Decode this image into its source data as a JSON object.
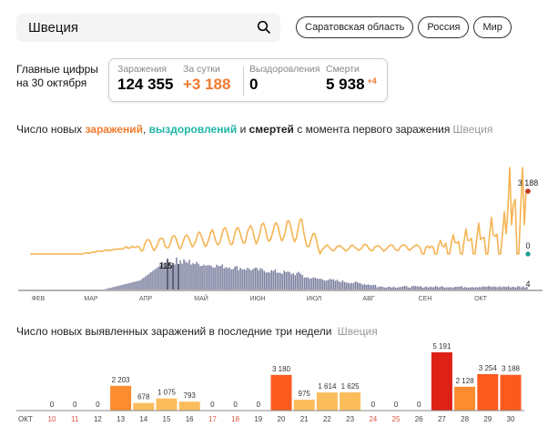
{
  "search": {
    "value": "Швеция",
    "icon": "search-icon"
  },
  "region_pills": [
    "Саратовская область",
    "Россия",
    "Мир"
  ],
  "main_figures": {
    "label_line1": "Главные цифры",
    "label_line2": "на 30 октября",
    "infections": {
      "label": "Заражения",
      "value": "124 355"
    },
    "per_day": {
      "label": "За сутки",
      "value": "+3 188"
    },
    "recoveries": {
      "label": "Выздоровления",
      "value": "0"
    },
    "deaths": {
      "label": "Смерти",
      "value": "5 938",
      "delta": "+4"
    }
  },
  "chart1_title": {
    "part1": "Число новых ",
    "infections": "заражений",
    "sep1": ", ",
    "recoveries": "выздоровлений",
    "sep2": " и ",
    "deaths": "смертей",
    "part2": " с момента первого заражения",
    "region": "Швеция"
  },
  "chart2_title": {
    "text": "Число новых выявленных заражений в последние три недели",
    "region": "Швеция"
  },
  "colors": {
    "infections_line": "#f5b454",
    "infections_peak": "#e34a24",
    "recoveries": "#1a9e8f",
    "deaths_bars": "#5d6080",
    "bar_low": "#fbbd5c",
    "bar_mid": "#fb8c2f",
    "bar_high": "#fb5a1f",
    "bar_max": "#dd2117",
    "weekend_label": "#e05545"
  },
  "chart_data": [
    {
      "type": "line",
      "title": "Число новых заражений, выздоровлений и смертей с момента первого заражения — Швеция",
      "x_ticks": [
        "ФЕВ",
        "МАР",
        "АПР",
        "МАЙ",
        "ИЮН",
        "ИЮЛ",
        "АВГ",
        "СЕН",
        "ОКТ"
      ],
      "series": [
        {
          "name": "заражения",
          "last_value": 3188,
          "annotation": "3 188",
          "peak_approx": 5191
        },
        {
          "name": "выздоровления",
          "last_value": 0,
          "annotation": "0"
        },
        {
          "name": "смерти",
          "type": "bar",
          "peak_value": 115,
          "peak_annotation": "115",
          "last_value": 4,
          "annotation": "4"
        }
      ],
      "grid": false
    },
    {
      "type": "bar",
      "title": "Число новых выявленных заражений в последние три недели — Швеция",
      "month_label": "ОКТ",
      "categories": [
        "10",
        "11",
        "12",
        "13",
        "14",
        "15",
        "16",
        "17",
        "18",
        "19",
        "20",
        "21",
        "22",
        "23",
        "24",
        "25",
        "26",
        "27",
        "28",
        "29",
        "30"
      ],
      "values": [
        0,
        0,
        0,
        2203,
        678,
        1075,
        793,
        0,
        0,
        0,
        3180,
        975,
        1614,
        1625,
        0,
        0,
        0,
        5191,
        2128,
        3254,
        3188
      ],
      "value_labels": [
        "0",
        "0",
        "0",
        "2 203",
        "678",
        "1 075",
        "793",
        "0",
        "0",
        "0",
        "3 180",
        "975",
        "1 614",
        "1 625",
        "0",
        "0",
        "0",
        "5 191",
        "2 128",
        "3 254",
        "3 188"
      ],
      "weekend_categories": [
        "10",
        "11",
        "17",
        "18",
        "24",
        "25"
      ],
      "grid": false
    }
  ]
}
